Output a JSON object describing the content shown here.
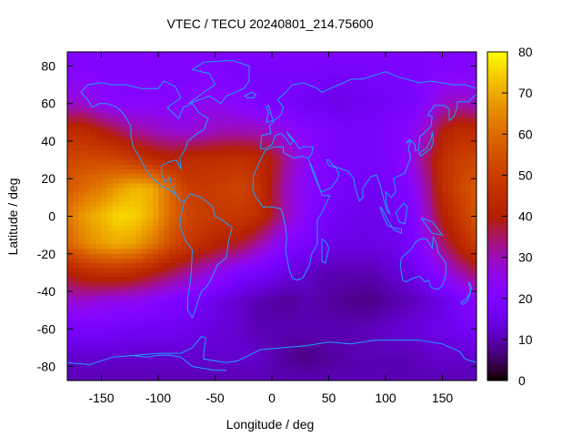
{
  "chart_data": {
    "type": "heatmap",
    "title": "VTEC / TECU 20240801_214.75600",
    "xlabel": "Longitude / deg",
    "ylabel": "Latitude / deg",
    "xlim": [
      -180,
      180
    ],
    "ylim": [
      -87.5,
      87.5
    ],
    "x_ticks": [
      -150,
      -100,
      -50,
      0,
      50,
      100,
      150
    ],
    "y_ticks": [
      -80,
      -60,
      -40,
      -20,
      0,
      20,
      40,
      60,
      80
    ],
    "colorbar": {
      "ticks": [
        0,
        10,
        20,
        30,
        40,
        50,
        60,
        70,
        80
      ],
      "range": [
        0,
        80
      ]
    },
    "grid": false,
    "coastline_color": "#1ea0ff",
    "longitudes": [
      -180,
      -165,
      -150,
      -135,
      -120,
      -105,
      -90,
      -75,
      -60,
      -45,
      -30,
      -15,
      0,
      15,
      30,
      45,
      60,
      75,
      90,
      105,
      120,
      135,
      150,
      165,
      180
    ],
    "latitudes": [
      87.5,
      75,
      60,
      45,
      30,
      15,
      0,
      -15,
      -30,
      -45,
      -60,
      -75,
      -87.5
    ],
    "values": [
      [
        20,
        20,
        20,
        20,
        20,
        20,
        20,
        20,
        20,
        20,
        20,
        20,
        20,
        20,
        20,
        20,
        20,
        20,
        20,
        20,
        20,
        20,
        20,
        20,
        20
      ],
      [
        22,
        22,
        20,
        20,
        20,
        20,
        20,
        20,
        20,
        20,
        19,
        18,
        18,
        18,
        18,
        17,
        17,
        17,
        18,
        18,
        18,
        20,
        22,
        22,
        22
      ],
      [
        28,
        28,
        24,
        22,
        22,
        22,
        22,
        22,
        25,
        24,
        22,
        20,
        18,
        18,
        16,
        16,
        14,
        16,
        16,
        17,
        18,
        22,
        28,
        30,
        28
      ],
      [
        44,
        44,
        40,
        36,
        32,
        30,
        28,
        27,
        28,
        30,
        30,
        30,
        28,
        24,
        22,
        20,
        18,
        18,
        18,
        20,
        22,
        28,
        40,
        45,
        44
      ],
      [
        52,
        53,
        53,
        52,
        48,
        44,
        42,
        44,
        45,
        45,
        46,
        44,
        40,
        30,
        24,
        20,
        18,
        18,
        18,
        20,
        24,
        34,
        45,
        50,
        52
      ],
      [
        56,
        60,
        63,
        68,
        72,
        70,
        60,
        50,
        48,
        50,
        52,
        48,
        38,
        28,
        22,
        20,
        18,
        16,
        16,
        17,
        20,
        30,
        45,
        52,
        56
      ],
      [
        62,
        68,
        72,
        76,
        75,
        70,
        60,
        52,
        50,
        48,
        48,
        46,
        38,
        28,
        22,
        18,
        16,
        15,
        15,
        16,
        18,
        28,
        40,
        48,
        56
      ],
      [
        58,
        64,
        68,
        70,
        68,
        62,
        54,
        48,
        44,
        40,
        38,
        32,
        26,
        20,
        18,
        16,
        14,
        14,
        14,
        15,
        17,
        24,
        34,
        42,
        50
      ],
      [
        40,
        44,
        46,
        46,
        44,
        40,
        36,
        32,
        28,
        24,
        20,
        18,
        16,
        14,
        12,
        10,
        10,
        10,
        10,
        12,
        14,
        18,
        24,
        30,
        36
      ],
      [
        28,
        28,
        26,
        25,
        24,
        22,
        20,
        18,
        16,
        14,
        12,
        10,
        9,
        8,
        10,
        9,
        8,
        7,
        7,
        9,
        10,
        12,
        14,
        18,
        22
      ],
      [
        18,
        18,
        18,
        17,
        16,
        16,
        16,
        15,
        14,
        13,
        12,
        10,
        10,
        10,
        10,
        10,
        10,
        10,
        11,
        12,
        13,
        14,
        15,
        16,
        18
      ],
      [
        12,
        12,
        12,
        12,
        12,
        12,
        12,
        12,
        12,
        12,
        12,
        12,
        10,
        8,
        7,
        8,
        9,
        10,
        10,
        10,
        10,
        11,
        12,
        12,
        12
      ],
      [
        10,
        10,
        10,
        10,
        10,
        10,
        10,
        10,
        10,
        10,
        10,
        10,
        10,
        10,
        10,
        10,
        10,
        10,
        10,
        10,
        10,
        10,
        10,
        10,
        10
      ]
    ]
  }
}
